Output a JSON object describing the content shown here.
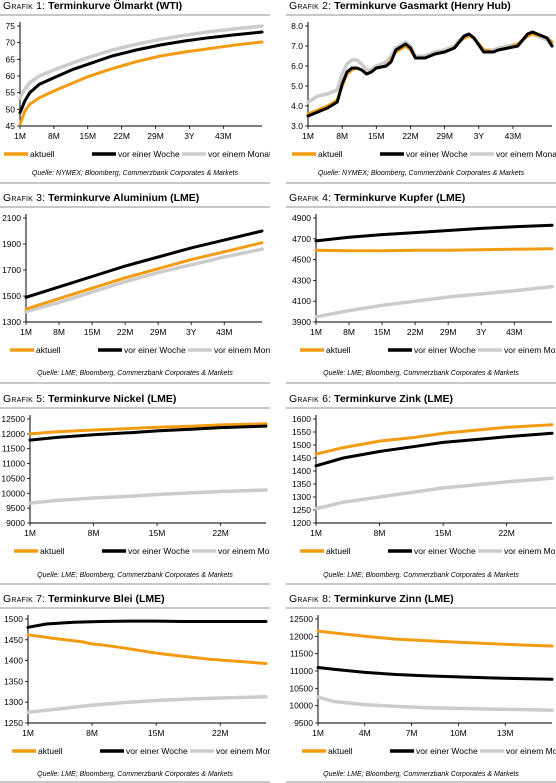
{
  "colors": {
    "aktuell": "#f39c12",
    "woche": "#000000",
    "monat": "#cccccc"
  },
  "chart_data": [
    {
      "type": "line",
      "prefix": "Grafik 1:",
      "title": "Terminkurve Ölmarkt (WTI)",
      "source": "Quelle: NYMEX; Bloomberg, Commerzbank Corporates & Markets",
      "ylim": [
        45,
        75
      ],
      "yticks": [
        "45",
        "50",
        "55",
        "60",
        "65",
        "70",
        "75"
      ],
      "xticks": [
        "1M",
        "8M",
        "15M",
        "22M",
        "29M",
        "3Y",
        "43M"
      ],
      "xmax": 51,
      "series": [
        {
          "name": "aktuell",
          "key": "aktuell",
          "x": [
            1,
            2,
            3,
            5,
            8,
            12,
            15,
            20,
            25,
            30,
            35,
            40,
            45,
            51
          ],
          "values": [
            45.5,
            49.5,
            51.5,
            53.5,
            55.5,
            58,
            59.8,
            62.2,
            64.3,
            66,
            67.2,
            68.2,
            69.2,
            70.2
          ]
        },
        {
          "name": "vor einer Woche",
          "key": "woche",
          "x": [
            1,
            2,
            3,
            5,
            8,
            12,
            15,
            20,
            25,
            30,
            35,
            40,
            45,
            51
          ],
          "values": [
            49,
            52.5,
            55,
            57.5,
            59.5,
            62,
            63.5,
            66,
            67.8,
            69.3,
            70.5,
            71.5,
            72.3,
            73.2
          ]
        },
        {
          "name": "vor einem Monat",
          "key": "monat",
          "x": [
            1,
            2,
            3,
            5,
            8,
            12,
            15,
            20,
            25,
            30,
            35,
            40,
            45,
            51
          ],
          "values": [
            53.5,
            56,
            58,
            60,
            61.8,
            64,
            65.5,
            67.8,
            69.5,
            71,
            72.2,
            73.3,
            74.1,
            75
          ]
        }
      ],
      "legend": [
        "aktuell",
        "vor einer Woche",
        "vor einem Monat"
      ]
    },
    {
      "type": "line",
      "prefix": "Grafik 2:",
      "title": "Terminkurve Gasmarkt (Henry Hub)",
      "source": "Quelle: NYMEX; Bloomberg, Commerzbank Corporates & Markets",
      "ylim": [
        3.0,
        8.0
      ],
      "yticks": [
        "3.0",
        "4.0",
        "5.0",
        "6.0",
        "7.0",
        "8.0"
      ],
      "xticks": [
        "1M",
        "8M",
        "15M",
        "22M",
        "29M",
        "3Y",
        "43M"
      ],
      "xmax": 51,
      "series": [
        {
          "name": "aktuell",
          "key": "aktuell",
          "x": [
            1,
            3,
            5,
            7,
            8,
            9,
            10,
            11,
            12,
            13,
            14,
            15,
            17,
            18,
            19,
            21,
            22,
            23,
            25,
            27,
            29,
            31,
            32,
            33,
            34,
            35,
            37,
            39,
            40,
            42,
            44,
            46,
            47,
            49,
            50,
            51
          ],
          "values": [
            3.6,
            3.8,
            4.0,
            4.3,
            5.0,
            5.6,
            5.8,
            5.9,
            5.8,
            5.6,
            5.7,
            5.9,
            6.0,
            6.3,
            6.7,
            7.0,
            6.8,
            6.4,
            6.4,
            6.6,
            6.7,
            6.9,
            7.2,
            7.4,
            7.5,
            7.4,
            6.8,
            6.7,
            6.8,
            6.9,
            7.1,
            7.5,
            7.6,
            7.5,
            7.4,
            7.2
          ]
        },
        {
          "name": "vor einer Woche",
          "key": "woche",
          "x": [
            1,
            3,
            5,
            7,
            8,
            9,
            10,
            11,
            12,
            13,
            14,
            15,
            17,
            18,
            19,
            21,
            22,
            23,
            25,
            27,
            29,
            31,
            32,
            33,
            34,
            35,
            37,
            39,
            40,
            42,
            44,
            46,
            47,
            49,
            50,
            51
          ],
          "values": [
            3.5,
            3.7,
            3.9,
            4.2,
            5.1,
            5.7,
            5.9,
            5.9,
            5.8,
            5.6,
            5.7,
            5.9,
            6.0,
            6.2,
            6.8,
            7.1,
            6.9,
            6.4,
            6.4,
            6.6,
            6.7,
            6.9,
            7.2,
            7.5,
            7.6,
            7.4,
            6.7,
            6.7,
            6.8,
            6.9,
            7.0,
            7.6,
            7.7,
            7.5,
            7.4,
            7.0
          ]
        },
        {
          "name": "vor einem Monat",
          "key": "monat",
          "x": [
            1,
            3,
            5,
            7,
            8,
            9,
            10,
            11,
            12,
            13,
            14,
            15,
            17,
            18,
            19,
            21,
            22,
            23,
            25,
            27,
            29,
            31,
            32,
            33,
            34,
            35,
            37,
            39,
            40,
            42,
            44,
            46,
            47,
            49,
            50,
            51
          ],
          "values": [
            4.2,
            4.5,
            4.6,
            4.8,
            5.6,
            6.1,
            6.3,
            6.3,
            6.1,
            5.8,
            5.8,
            6.0,
            6.2,
            6.5,
            6.9,
            7.2,
            7.0,
            6.5,
            6.5,
            6.7,
            6.8,
            7.0,
            7.3,
            7.5,
            7.6,
            7.4,
            6.8,
            6.8,
            6.9,
            7.0,
            7.1,
            7.5,
            7.6,
            7.4,
            7.3,
            7.0
          ]
        }
      ],
      "legend": [
        "aktuell",
        "vor einer Woche",
        "vor einem Monat"
      ]
    },
    {
      "type": "line",
      "prefix": "Grafik 3:",
      "title": "Terminkurve Aluminium (LME)",
      "source": "Quelle: LME; Bloomberg, Commerzbank Corporates & Markets",
      "ylim": [
        1300,
        2100
      ],
      "yticks": [
        "1300",
        "1500",
        "1700",
        "1900",
        "2100"
      ],
      "xticks": [
        "1M",
        "8M",
        "15M",
        "22M",
        "29M",
        "3Y",
        "43M"
      ],
      "xmax": 51,
      "series": [
        {
          "name": "aktuell",
          "key": "aktuell",
          "x": [
            1,
            8,
            15,
            22,
            29,
            36,
            43,
            51
          ],
          "values": [
            1400,
            1480,
            1560,
            1640,
            1710,
            1780,
            1840,
            1910
          ]
        },
        {
          "name": "vor einer Woche",
          "key": "woche",
          "x": [
            1,
            8,
            15,
            22,
            29,
            36,
            43,
            51
          ],
          "values": [
            1490,
            1570,
            1650,
            1730,
            1800,
            1870,
            1930,
            2000
          ]
        },
        {
          "name": "vor einem Monat",
          "key": "monat",
          "x": [
            1,
            8,
            15,
            22,
            29,
            36,
            43,
            51
          ],
          "values": [
            1380,
            1450,
            1530,
            1610,
            1680,
            1740,
            1800,
            1860
          ]
        }
      ],
      "legend": [
        "aktuell",
        "vor einer Woche",
        "vor einem Monat"
      ]
    },
    {
      "type": "line",
      "prefix": "Grafik 4:",
      "title": "Terminkurve Kupfer (LME)",
      "source": "Quelle: LME; Bloomberg, Commerzbank Corporates & Markets",
      "ylim": [
        3900,
        4900
      ],
      "yticks": [
        "3900",
        "4100",
        "4300",
        "4500",
        "4700",
        "4900"
      ],
      "xticks": [
        "1M",
        "8M",
        "15M",
        "22M",
        "29M",
        "3Y",
        "43M"
      ],
      "xmax": 51,
      "series": [
        {
          "name": "aktuell",
          "key": "aktuell",
          "x": [
            1,
            8,
            15,
            22,
            29,
            36,
            43,
            51
          ],
          "values": [
            4590,
            4585,
            4585,
            4590,
            4590,
            4595,
            4600,
            4605
          ]
        },
        {
          "name": "vor einer Woche",
          "key": "woche",
          "x": [
            1,
            8,
            15,
            22,
            29,
            36,
            43,
            51
          ],
          "values": [
            4680,
            4715,
            4740,
            4760,
            4780,
            4800,
            4815,
            4830
          ]
        },
        {
          "name": "vor einem Monat",
          "key": "monat",
          "x": [
            1,
            8,
            15,
            22,
            29,
            36,
            43,
            51
          ],
          "values": [
            3950,
            4010,
            4060,
            4100,
            4140,
            4170,
            4200,
            4240
          ]
        }
      ],
      "legend": [
        "aktuell",
        "vor einer Woche",
        "vor einem Monat"
      ]
    },
    {
      "type": "line",
      "prefix": "Grafik 5:",
      "title": "Terminkurve Nickel (LME)",
      "source": "Quelle: LME; Bloomberg, Commerzbank Corporates & Markets",
      "ylim": [
        9000,
        12500
      ],
      "yticks": [
        "9000",
        "9500",
        "10000",
        "10500",
        "11000",
        "11500",
        "12000",
        "12500"
      ],
      "xticks": [
        "1M",
        "8M",
        "15M",
        "22M"
      ],
      "xmax": 27,
      "series": [
        {
          "name": "aktuell",
          "key": "aktuell",
          "x": [
            1,
            4,
            8,
            12,
            15,
            19,
            22,
            27
          ],
          "values": [
            12000,
            12070,
            12130,
            12180,
            12220,
            12260,
            12300,
            12340
          ]
        },
        {
          "name": "vor einer Woche",
          "key": "woche",
          "x": [
            1,
            4,
            8,
            12,
            15,
            19,
            22,
            27
          ],
          "values": [
            11790,
            11880,
            11970,
            12040,
            12100,
            12160,
            12210,
            12260
          ]
        },
        {
          "name": "vor einem Monat",
          "key": "monat",
          "x": [
            1,
            4,
            8,
            12,
            15,
            19,
            22,
            27
          ],
          "values": [
            9670,
            9760,
            9840,
            9900,
            9960,
            10020,
            10060,
            10110
          ]
        }
      ],
      "legend": [
        "aktuell",
        "vor einer Woche",
        "vor einem Monat"
      ]
    },
    {
      "type": "line",
      "prefix": "Grafik 6:",
      "title": "Terminkurve Zink (LME)",
      "source": "Quelle: LME; Bloomberg, Commerzbank Corporates & Markets",
      "ylim": [
        1200,
        1600
      ],
      "yticks": [
        "1200",
        "1250",
        "1300",
        "1350",
        "1400",
        "1450",
        "1500",
        "1550",
        "1600"
      ],
      "xticks": [
        "1M",
        "8M",
        "15M",
        "22M"
      ],
      "xmax": 27,
      "series": [
        {
          "name": "aktuell",
          "key": "aktuell",
          "x": [
            1,
            4,
            8,
            12,
            15,
            19,
            22,
            27
          ],
          "values": [
            1465,
            1490,
            1515,
            1530,
            1545,
            1558,
            1568,
            1578
          ]
        },
        {
          "name": "vor einer Woche",
          "key": "woche",
          "x": [
            1,
            4,
            8,
            12,
            15,
            19,
            22,
            27
          ],
          "values": [
            1420,
            1450,
            1475,
            1495,
            1510,
            1522,
            1532,
            1545
          ]
        },
        {
          "name": "vor einem Monat",
          "key": "monat",
          "x": [
            1,
            4,
            8,
            12,
            15,
            19,
            22,
            27
          ],
          "values": [
            1255,
            1280,
            1300,
            1320,
            1335,
            1348,
            1358,
            1372
          ]
        }
      ],
      "legend": [
        "aktuell",
        "vor einer Woche",
        "vor einem Monat"
      ]
    },
    {
      "type": "line",
      "prefix": "Grafik 7:",
      "title": "Terminkurve Blei (LME)",
      "source": "Quelle: LME; Bloomberg, Commerzbank Corporates & Markets",
      "ylim": [
        1250,
        1500
      ],
      "yticks": [
        "1250",
        "1300",
        "1350",
        "1400",
        "1450",
        "1500"
      ],
      "xticks": [
        "1M",
        "8M",
        "15M",
        "22M"
      ],
      "xmax": 27,
      "series": [
        {
          "name": "aktuell",
          "key": "aktuell",
          "x": [
            1,
            4,
            7,
            8,
            9,
            11,
            15,
            18,
            21,
            24,
            27
          ],
          "values": [
            1462,
            1453,
            1445,
            1440,
            1438,
            1432,
            1418,
            1410,
            1403,
            1398,
            1393
          ]
        },
        {
          "name": "vor einer Woche",
          "key": "woche",
          "x": [
            1,
            3,
            6,
            9,
            12,
            15,
            18,
            21,
            24,
            27
          ],
          "values": [
            1480,
            1488,
            1492,
            1494,
            1495,
            1495,
            1494,
            1494,
            1494,
            1494
          ]
        },
        {
          "name": "vor einem Monat",
          "key": "monat",
          "x": [
            1,
            4,
            8,
            12,
            15,
            19,
            22,
            27
          ],
          "values": [
            1276,
            1283,
            1293,
            1300,
            1304,
            1308,
            1310,
            1313
          ]
        }
      ],
      "legend": [
        "aktuell",
        "vor einer Woche",
        "vor einem Monat"
      ]
    },
    {
      "type": "line",
      "prefix": "Grafik 8:",
      "title": "Terminkurve Zinn (LME)",
      "source": "Quelle: LME; Bloomberg, Commerzbank Corporates & Markets",
      "ylim": [
        9500,
        12500
      ],
      "yticks": [
        "9500",
        "10000",
        "10500",
        "11000",
        "11500",
        "12000",
        "12500"
      ],
      "xticks": [
        "1M",
        "4M",
        "7M",
        "10M",
        "13M"
      ],
      "xmax": 16,
      "series": [
        {
          "name": "aktuell",
          "key": "aktuell",
          "x": [
            1,
            2,
            4,
            6,
            8,
            10,
            12,
            14,
            16
          ],
          "values": [
            12150,
            12100,
            12000,
            11920,
            11870,
            11830,
            11790,
            11750,
            11720
          ]
        },
        {
          "name": "vor einer Woche",
          "key": "woche",
          "x": [
            1,
            2,
            4,
            6,
            8,
            10,
            12,
            14,
            16
          ],
          "values": [
            11100,
            11050,
            10960,
            10900,
            10860,
            10830,
            10800,
            10780,
            10760
          ]
        },
        {
          "name": "vor einem Monat",
          "key": "monat",
          "x": [
            1,
            2,
            4,
            6,
            8,
            10,
            12,
            14,
            16
          ],
          "values": [
            10250,
            10120,
            10030,
            9980,
            9940,
            9920,
            9900,
            9890,
            9870
          ]
        }
      ],
      "legend": [
        "aktuell",
        "vor einer Woche",
        "vor einem Monat"
      ]
    }
  ]
}
